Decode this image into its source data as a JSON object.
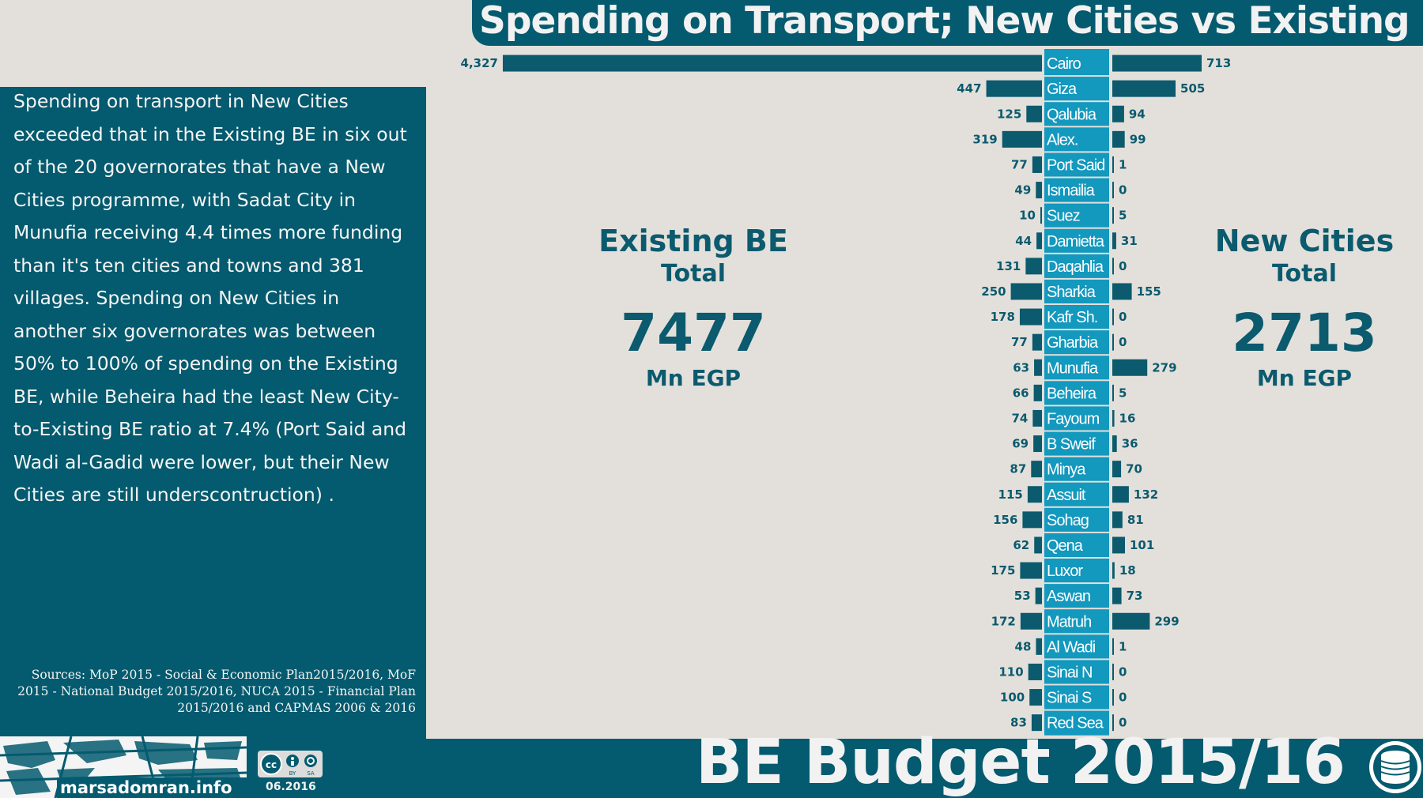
{
  "title": "Spending on Transport; New Cities vs Existing BE",
  "description": "Spending on transport in New Cities exceeded that in the Existing BE in six out of the 20 governorates that have a New Cities programme, with Sadat City in Munufia receiving 4.4 times more funding than it's ten cities and towns and 381 villages. Spending on New Cities in another six governorates was between 50% to 100% of spending on the Existing BE, while Beheira had the least New City-to-Existing BE ratio at 7.4% (Port Said and Wadi al-Gadid were lower, but their New Cities are still underscontruction) .",
  "sources": "Sources: MoP 2015 - Social & Economic Plan2015/2016, MoF 2015 - National Budget 2015/2016, NUCA 2015 - Financial Plan 2015/2016 and CAPMAS 2006 & 2016",
  "existing": {
    "label": "Existing BE",
    "sub": "Total",
    "value": "7477",
    "unit": "Mn EGP"
  },
  "new_cities": {
    "label": "New Cities",
    "sub": "Total",
    "value": "2713",
    "unit": "Mn EGP"
  },
  "footer": {
    "title": "BE Budget 2015/16",
    "logo_text": "marsadomran.info",
    "date": "06.2016",
    "icons": [
      "coin-stack-icon",
      "cc-by-sa-icon",
      "marsad-omran-logo"
    ]
  },
  "colors": {
    "teal": "#045a6e",
    "bar": "#0b5a6e",
    "label_band": "#1398be",
    "background": "#e3e0db"
  },
  "chart_data": {
    "type": "bar",
    "orientation": "diverging-horizontal",
    "categories": [
      "Cairo",
      "Giza",
      "Qalubia",
      "Alex.",
      "Port Said",
      "Ismailia",
      "Suez",
      "Damietta",
      "Daqahlia",
      "Sharkia",
      "Kafr Sh.",
      "Gharbia",
      "Munufia",
      "Beheira",
      "Fayoum",
      "B Sweif",
      "Minya",
      "Assuit",
      "Sohag",
      "Qena",
      "Luxor",
      "Aswan",
      "Matruh",
      "Al Wadi",
      "Sinai N",
      "Sinai S",
      "Red Sea"
    ],
    "series": [
      {
        "name": "Existing BE",
        "values": [
          4327,
          447,
          125,
          319,
          77,
          49,
          10,
          44,
          131,
          250,
          178,
          77,
          63,
          66,
          74,
          69,
          87,
          115,
          156,
          62,
          175,
          53,
          172,
          48,
          110,
          100,
          83
        ],
        "labels": [
          "4,327",
          "447",
          "125",
          "319",
          "77",
          "49",
          "10",
          "44",
          "131",
          "250",
          "178",
          "77",
          "63",
          "66",
          "74",
          "69",
          "87",
          "115",
          "156",
          "62",
          "175",
          "53",
          "172",
          "48",
          "110",
          "100",
          "83"
        ]
      },
      {
        "name": "New Cities",
        "values": [
          713,
          505,
          94,
          99,
          1,
          0,
          5,
          31,
          0,
          155,
          0,
          0,
          279,
          5,
          16,
          36,
          70,
          132,
          81,
          101,
          18,
          73,
          299,
          1,
          0,
          0,
          0
        ],
        "labels": [
          "713",
          "505",
          "94",
          "99",
          "1",
          "0",
          "5",
          "31",
          "0",
          "155",
          "0",
          "0",
          "279",
          "5",
          "16",
          "36",
          "70",
          "132",
          "81",
          "101",
          "18",
          "73",
          "299",
          "1",
          "0",
          "0",
          "0"
        ]
      }
    ],
    "unit": "Mn EGP"
  }
}
